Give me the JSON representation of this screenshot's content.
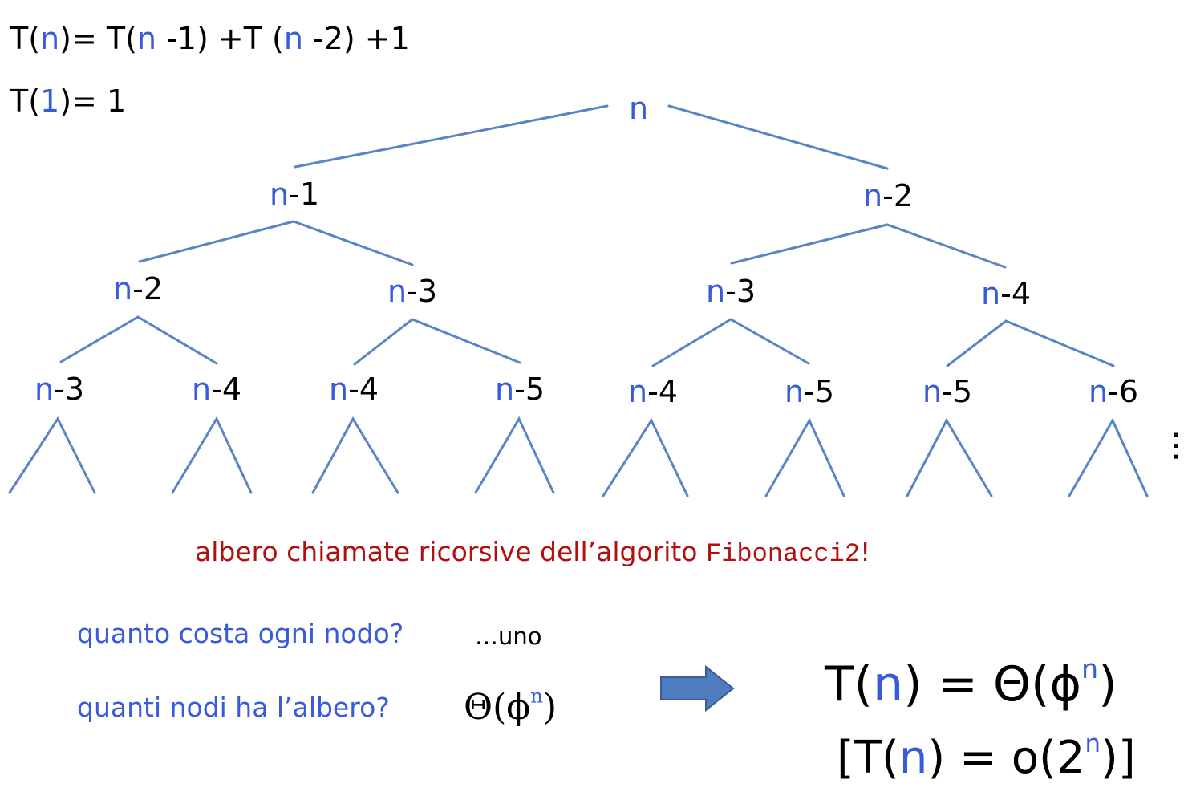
{
  "recurrence": {
    "line1": {
      "a": "T(",
      "n1": "n",
      "b": ")= T(",
      "n2": "n",
      "c": " -1) +T (",
      "n3": "n",
      "d": " -2) +1"
    },
    "line2": {
      "a": "T(",
      "one": "1",
      "b": ")= 1"
    }
  },
  "tree": {
    "root": {
      "var": "n",
      "rest": ""
    },
    "level1": [
      {
        "var": "n",
        "rest": "-1"
      },
      {
        "var": "n",
        "rest": "-2"
      }
    ],
    "level2": [
      {
        "var": "n",
        "rest": "-2"
      },
      {
        "var": "n",
        "rest": "-3"
      },
      {
        "var": "n",
        "rest": "-3"
      },
      {
        "var": "n",
        "rest": "-4"
      }
    ],
    "level3": [
      {
        "var": "n",
        "rest": "-3"
      },
      {
        "var": "n",
        "rest": "-4"
      },
      {
        "var": "n",
        "rest": "-4"
      },
      {
        "var": "n",
        "rest": "-5"
      },
      {
        "var": "n",
        "rest": "-4"
      },
      {
        "var": "n",
        "rest": "-5"
      },
      {
        "var": "n",
        "rest": "-5"
      },
      {
        "var": "n",
        "rest": "-6"
      }
    ],
    "continuation": "⋮",
    "edge_color": "#5b84c4"
  },
  "caption": {
    "text": "albero chiamate ricorsive dell’algorito ",
    "code": "Fibonacci2",
    "end": "!"
  },
  "questions": {
    "q1": "quanto costa ogni nodo?",
    "a1": "…uno",
    "q2": "quanti nodi ha l’albero?",
    "a2": {
      "theta": "Θ(ϕ",
      "exp": "n",
      "close": ")"
    }
  },
  "arrow": {
    "icon": "right-arrow-icon",
    "fill": "#4f7cbf",
    "stroke": "#3a5e94"
  },
  "result": {
    "line1": {
      "a": "T(",
      "n": "n",
      "b": ") = Θ(ϕ",
      "exp": "n",
      "c": ")"
    },
    "line2": {
      "a": "[T(",
      "n": "n",
      "b": ") = o(2",
      "exp": "n",
      "c": ")]"
    }
  },
  "colors": {
    "variable": "#3a5bd9",
    "caption": "#b01010",
    "edges": "#5b84c4"
  }
}
